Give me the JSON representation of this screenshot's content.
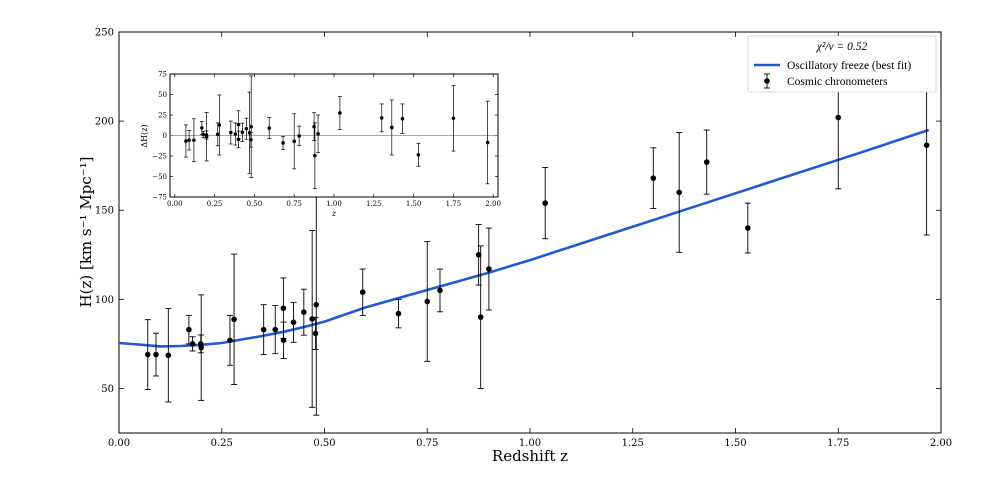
{
  "chart_data": [
    {
      "panel": "main",
      "type": "scatter",
      "xlabel": "Redshift z",
      "ylabel": "H(z) [km s⁻¹ Mpc⁻¹]",
      "xlim": [
        0.0,
        2.0
      ],
      "ylim": [
        25,
        250
      ],
      "xticks": [
        "0.00",
        "0.25",
        "0.50",
        "0.75",
        "1.00",
        "1.25",
        "1.50",
        "1.75",
        "2.00"
      ],
      "yticks": [
        "50",
        "100",
        "150",
        "200",
        "250"
      ],
      "grid": false,
      "legend": {
        "placement": "top-right",
        "title": "χ²/ν = 0.52",
        "entries": [
          "Oscillatory freeze (best fit)",
          "Cosmic chronometers"
        ]
      },
      "series": [
        {
          "name": "Cosmic chronometers",
          "kind": "errorbar",
          "color": "#000000",
          "points": [
            {
              "x": 0.07,
              "y": 69,
              "err": 19.6
            },
            {
              "x": 0.09,
              "y": 69,
              "err": 12
            },
            {
              "x": 0.12,
              "y": 68.6,
              "err": 26.2
            },
            {
              "x": 0.17,
              "y": 83,
              "err": 8
            },
            {
              "x": 0.179,
              "y": 75,
              "err": 4
            },
            {
              "x": 0.199,
              "y": 75,
              "err": 5
            },
            {
              "x": 0.2,
              "y": 72.9,
              "err": 29.6
            },
            {
              "x": 0.27,
              "y": 77,
              "err": 14
            },
            {
              "x": 0.28,
              "y": 88.8,
              "err": 36.6
            },
            {
              "x": 0.352,
              "y": 83,
              "err": 14
            },
            {
              "x": 0.3802,
              "y": 83,
              "err": 13.5
            },
            {
              "x": 0.4,
              "y": 95,
              "err": 17
            },
            {
              "x": 0.4004,
              "y": 77,
              "err": 10.2
            },
            {
              "x": 0.4247,
              "y": 87.1,
              "err": 11.2
            },
            {
              "x": 0.4497,
              "y": 92.8,
              "err": 12.9
            },
            {
              "x": 0.47,
              "y": 89,
              "err": 49.6
            },
            {
              "x": 0.4783,
              "y": 80.9,
              "err": 9
            },
            {
              "x": 0.48,
              "y": 97,
              "err": 62
            },
            {
              "x": 0.593,
              "y": 104,
              "err": 13
            },
            {
              "x": 0.68,
              "y": 92,
              "err": 8
            },
            {
              "x": 0.75,
              "y": 98.8,
              "err": 33.6
            },
            {
              "x": 0.781,
              "y": 105,
              "err": 12
            },
            {
              "x": 0.875,
              "y": 125,
              "err": 17
            },
            {
              "x": 0.88,
              "y": 90,
              "err": 40
            },
            {
              "x": 0.9,
              "y": 117,
              "err": 23
            },
            {
              "x": 1.037,
              "y": 154,
              "err": 20
            },
            {
              "x": 1.3,
              "y": 168,
              "err": 17
            },
            {
              "x": 1.363,
              "y": 160,
              "err": 33.6
            },
            {
              "x": 1.43,
              "y": 177,
              "err": 18
            },
            {
              "x": 1.53,
              "y": 140,
              "err": 14
            },
            {
              "x": 1.75,
              "y": 202,
              "err": 40
            },
            {
              "x": 1.965,
              "y": 186.5,
              "err": 50.4
            }
          ]
        },
        {
          "name": "Oscillatory freeze (best fit)",
          "kind": "line",
          "color": "#2458d3",
          "x": [
            0.0,
            0.05,
            0.1,
            0.15,
            0.2,
            0.25,
            0.3,
            0.35,
            0.4,
            0.45,
            0.5,
            0.55,
            0.6,
            0.7,
            0.8,
            0.9,
            1.0,
            1.2,
            1.4,
            1.6,
            1.8,
            1.97
          ],
          "y": [
            75.5,
            74.6,
            73.6,
            73.8,
            74.5,
            75.5,
            77.5,
            79.5,
            81.8,
            84.5,
            87.5,
            91.5,
            95.5,
            102,
            108.5,
            115,
            122,
            137,
            152,
            167,
            182,
            195
          ]
        }
      ]
    },
    {
      "panel": "inset",
      "type": "scatter",
      "xlabel": "z",
      "ylabel": "ΔH(z)",
      "xlim": [
        -0.03,
        2.03
      ],
      "ylim": [
        -75,
        75
      ],
      "xticks": [
        "0.00",
        "0.25",
        "0.50",
        "0.75",
        "1.00",
        "1.25",
        "1.50",
        "1.75",
        "2.00"
      ],
      "yticks": [
        "75",
        "50",
        "25",
        "0",
        "−25",
        "−50",
        "−75"
      ],
      "reference_line": 0,
      "series": [
        {
          "name": "",
          "kind": "errorbar",
          "color": "#000000",
          "points": [
            {
              "x": 0.07,
              "y": -6.7,
              "err": 19.6
            },
            {
              "x": 0.09,
              "y": -5.7,
              "err": 12
            },
            {
              "x": 0.12,
              "y": -5.8,
              "err": 26.2
            },
            {
              "x": 0.17,
              "y": 9.3,
              "err": 8
            },
            {
              "x": 0.179,
              "y": 1.2,
              "err": 4
            },
            {
              "x": 0.199,
              "y": 0.6,
              "err": 5
            },
            {
              "x": 0.2,
              "y": -1.4,
              "err": 29.6
            },
            {
              "x": 0.27,
              "y": 1.4,
              "err": 14
            },
            {
              "x": 0.28,
              "y": 12.8,
              "err": 36.6
            },
            {
              "x": 0.352,
              "y": 3.6,
              "err": 14
            },
            {
              "x": 0.3802,
              "y": 1.8,
              "err": 13.5
            },
            {
              "x": 0.4,
              "y": 13.2,
              "err": 17
            },
            {
              "x": 0.4004,
              "y": -4.8,
              "err": 10.2
            },
            {
              "x": 0.4247,
              "y": 3.9,
              "err": 11.2
            },
            {
              "x": 0.4497,
              "y": 8.3,
              "err": 12.9
            },
            {
              "x": 0.47,
              "y": 3.3,
              "err": 49.6
            },
            {
              "x": 0.4783,
              "y": -5.2,
              "err": 9
            },
            {
              "x": 0.48,
              "y": 10.7,
              "err": 62
            },
            {
              "x": 0.593,
              "y": 9.1,
              "err": 13
            },
            {
              "x": 0.68,
              "y": -9.1,
              "err": 8
            },
            {
              "x": 0.75,
              "y": -7.1,
              "err": 33.6
            },
            {
              "x": 0.781,
              "y": -0.5,
              "err": 12
            },
            {
              "x": 0.875,
              "y": 10.8,
              "err": 17
            },
            {
              "x": 0.88,
              "y": -24.6,
              "err": 40
            },
            {
              "x": 0.9,
              "y": 2,
              "err": 23
            },
            {
              "x": 1.037,
              "y": 27.5,
              "err": 20
            },
            {
              "x": 1.3,
              "y": 21.5,
              "err": 17
            },
            {
              "x": 1.363,
              "y": 9.8,
              "err": 33.6
            },
            {
              "x": 1.43,
              "y": 20.5,
              "err": 18
            },
            {
              "x": 1.53,
              "y": -23.5,
              "err": 14
            },
            {
              "x": 1.75,
              "y": 21,
              "err": 40
            },
            {
              "x": 1.965,
              "y": -8.5,
              "err": 50.4
            }
          ]
        }
      ]
    }
  ]
}
